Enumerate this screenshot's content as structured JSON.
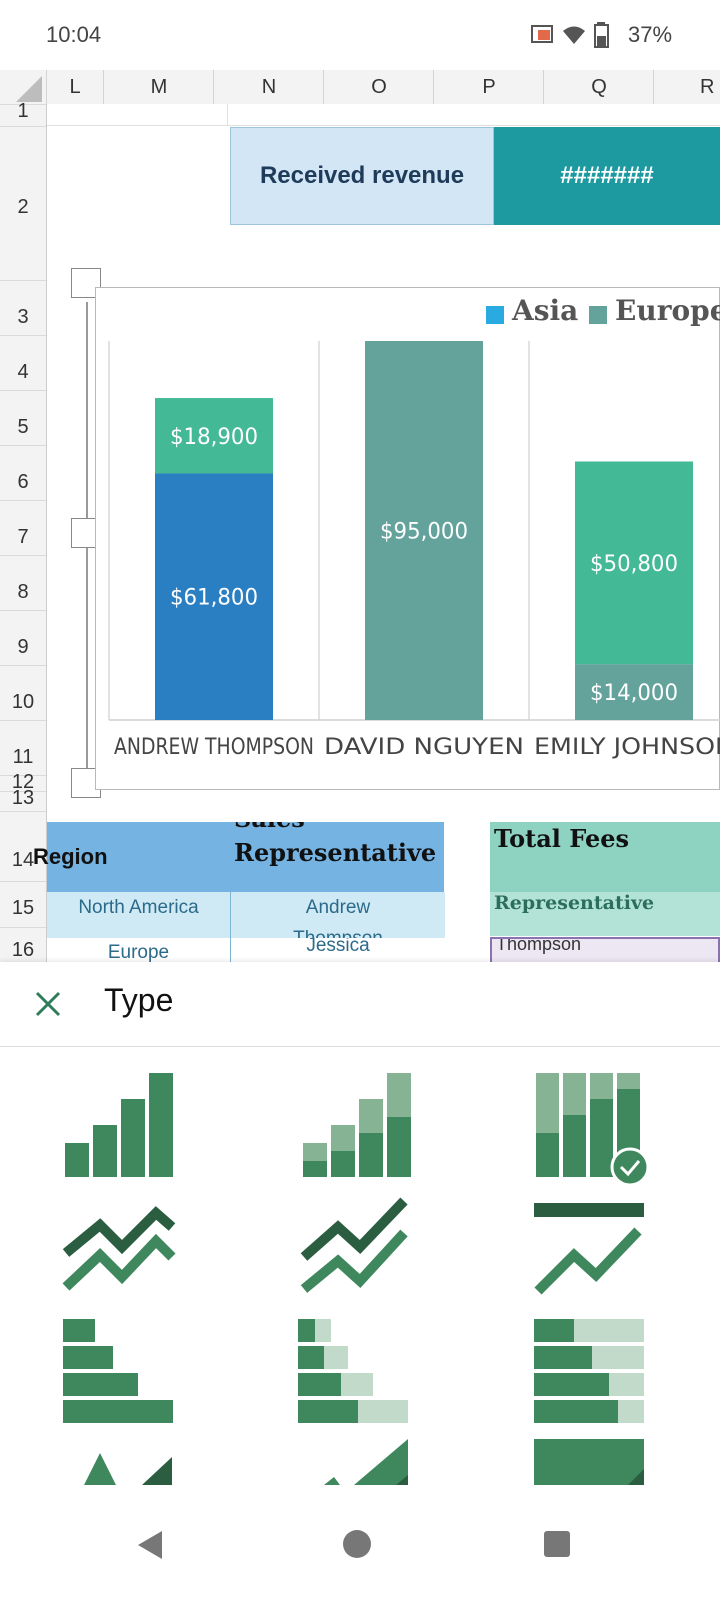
{
  "status_bar": {
    "time": "10:04",
    "battery": "37%"
  },
  "columns": [
    "L",
    "M",
    "N",
    "O",
    "P",
    "Q",
    "R"
  ],
  "rows": [
    "1",
    "2",
    "3",
    "4",
    "5",
    "6",
    "7",
    "8",
    "9",
    "10",
    "11",
    "12",
    "13",
    "14",
    "15",
    "16"
  ],
  "cells": {
    "received_revenue": "Received revenue",
    "received_value": "#######"
  },
  "chart_data": {
    "type": "bar",
    "stacked": true,
    "legend_position": "top-right",
    "legend": [
      "Asia",
      "Europe"
    ],
    "categories": [
      "ANDREW THOMPSON",
      "DAVID NGUYEN",
      "EMILY JOHNSON"
    ],
    "bar_labels": [
      [
        "$61,800",
        "$18,900"
      ],
      [
        "$95,000"
      ],
      [
        "$14,000",
        "$50,800"
      ]
    ],
    "series": [
      {
        "color": "#2a7fc3",
        "values": [
          61800,
          null,
          null
        ]
      },
      {
        "color": "#63a39c",
        "values": [
          null,
          95000,
          14000
        ]
      },
      {
        "color": "#43b995",
        "values": [
          18900,
          null,
          50800
        ]
      }
    ],
    "colors": {
      "asia": "#29abe2",
      "europe": "#63a39c"
    }
  },
  "table": {
    "header_region": "Region",
    "header_rep": "Sales Representative",
    "header_fees": "Total Fees",
    "rows": [
      {
        "region": "North America",
        "rep": "Andrew Thompson"
      },
      {
        "region": "Europe",
        "rep": "Jessica"
      }
    ],
    "sub_header": "Representative",
    "sub_value": "Thompson"
  },
  "panel": {
    "title": "Type",
    "close_icon": "close-icon",
    "selected_index": 2
  },
  "nav": {
    "back": "back-icon",
    "home": "home-icon",
    "recents": "recents-icon"
  }
}
